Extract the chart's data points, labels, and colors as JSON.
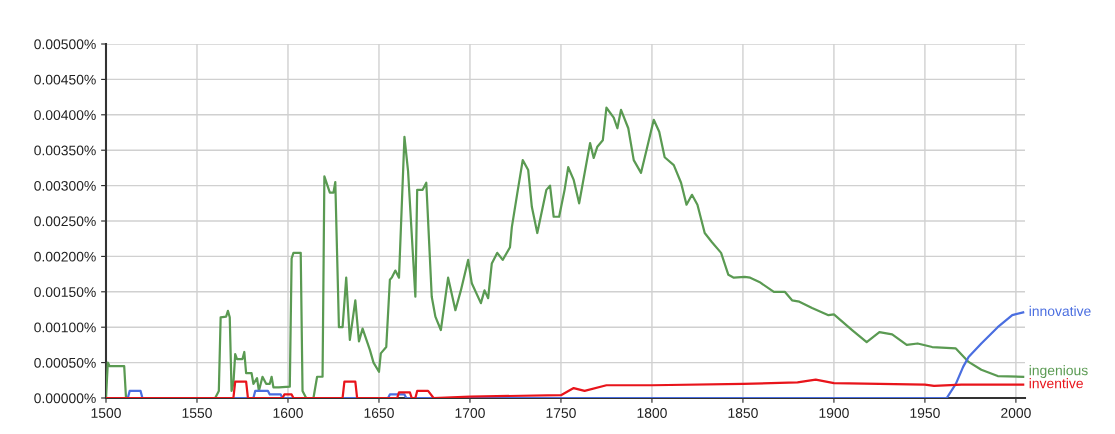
{
  "chart_data": {
    "type": "line",
    "xlim": [
      1500,
      2005
    ],
    "xticks": [
      1500,
      1550,
      1600,
      1650,
      1700,
      1750,
      1800,
      1850,
      1900,
      1950,
      2000
    ],
    "ylim": [
      0,
      0.005
    ],
    "yticks": [
      {
        "value": 0,
        "label": "0.00000%"
      },
      {
        "value": 0.0005,
        "label": "0.00050%"
      },
      {
        "value": 0.001,
        "label": "0.00100%"
      },
      {
        "value": 0.0015,
        "label": "0.00150%"
      },
      {
        "value": 0.002,
        "label": "0.00200%"
      },
      {
        "value": 0.0025,
        "label": "0.00250%"
      },
      {
        "value": 0.003,
        "label": "0.00300%"
      },
      {
        "value": 0.0035,
        "label": "0.00350%"
      },
      {
        "value": 0.004,
        "label": "0.00400%"
      },
      {
        "value": 0.0045,
        "label": "0.00450%"
      },
      {
        "value": 0.005,
        "label": "0.00500%"
      }
    ],
    "grid": true,
    "legend": false,
    "marker": "none",
    "line_style": "solid",
    "series": [
      {
        "name": "ingenious",
        "color": "#5a9a52",
        "x": [
          1500,
          1501,
          1502,
          1510,
          1511,
          1560,
          1562,
          1563,
          1566,
          1567,
          1568,
          1569,
          1570,
          1571,
          1572,
          1575,
          1576,
          1577,
          1580,
          1581,
          1583,
          1584,
          1586,
          1588,
          1590,
          1591,
          1592,
          1595,
          1601,
          1602,
          1603,
          1607,
          1608,
          1610,
          1614,
          1616,
          1619,
          1620,
          1623,
          1625,
          1626,
          1628,
          1630,
          1632,
          1634,
          1637,
          1639,
          1641,
          1645,
          1647,
          1650,
          1651,
          1654,
          1656,
          1657,
          1659,
          1661,
          1664,
          1666,
          1670,
          1671,
          1674,
          1676,
          1679,
          1681,
          1684,
          1688,
          1692,
          1695,
          1699,
          1701,
          1706,
          1708,
          1710,
          1712,
          1715,
          1718,
          1722,
          1723,
          1726,
          1729,
          1732,
          1734,
          1737,
          1742,
          1744,
          1746,
          1749,
          1752,
          1754,
          1757,
          1760,
          1766,
          1768,
          1770,
          1773,
          1775,
          1779,
          1781,
          1783,
          1787,
          1790,
          1794,
          1797,
          1801,
          1804,
          1807,
          1812,
          1816,
          1819,
          1822,
          1825,
          1829,
          1833,
          1838,
          1842,
          1845,
          1851,
          1854,
          1859,
          1867,
          1873,
          1877,
          1881,
          1888,
          1897,
          1900,
          1910,
          1918,
          1925,
          1932,
          1940,
          1946,
          1954,
          1967,
          1974,
          1981,
          1990,
          2004
        ],
        "values": [
          0,
          0.0005,
          0.00045,
          0.00045,
          0,
          0,
          0.0001,
          0.00114,
          0.00115,
          0.00123,
          0.00114,
          0.0001,
          0.0002,
          0.00062,
          0.00055,
          0.00055,
          0.00065,
          0.00035,
          0.00035,
          0.0002,
          0.00028,
          0.0001,
          0.0003,
          0.0002,
          0.0002,
          0.0003,
          0.00015,
          0.00015,
          0.00016,
          0.00197,
          0.00205,
          0.00205,
          0.0001,
          0,
          0,
          0.0003,
          0.0003,
          0.00313,
          0.0029,
          0.0029,
          0.00305,
          0.001,
          0.001,
          0.0017,
          0.00082,
          0.00138,
          0.0008,
          0.00098,
          0.00068,
          0.0005,
          0.00037,
          0.00063,
          0.00072,
          0.00167,
          0.0017,
          0.0018,
          0.0017,
          0.00369,
          0.0032,
          0.00143,
          0.00294,
          0.00294,
          0.00304,
          0.00143,
          0.00115,
          0.00096,
          0.0017,
          0.00124,
          0.00152,
          0.00195,
          0.00162,
          0.00134,
          0.00152,
          0.00141,
          0.0019,
          0.00205,
          0.00195,
          0.00213,
          0.00241,
          0.00289,
          0.00336,
          0.00322,
          0.0027,
          0.00233,
          0.00294,
          0.003,
          0.00256,
          0.00256,
          0.00294,
          0.00326,
          0.00308,
          0.00275,
          0.0036,
          0.00339,
          0.00355,
          0.00364,
          0.0041,
          0.00396,
          0.00381,
          0.00407,
          0.00381,
          0.00336,
          0.00318,
          0.0035,
          0.00393,
          0.00376,
          0.0034,
          0.00329,
          0.00304,
          0.00273,
          0.00287,
          0.00273,
          0.00233,
          0.0022,
          0.00205,
          0.00174,
          0.0017,
          0.00171,
          0.0017,
          0.00164,
          0.0015,
          0.0015,
          0.00138,
          0.00136,
          0.00127,
          0.00117,
          0.00118,
          0.00096,
          0.00079,
          0.00093,
          0.0009,
          0.00075,
          0.00077,
          0.00072,
          0.0007,
          0.00051,
          0.0004,
          0.00031,
          0.0003
        ]
      },
      {
        "name": "innovative",
        "color": "#4a6ee0",
        "x": [
          1500,
          1512,
          1513,
          1519,
          1520,
          1581,
          1582,
          1589,
          1590,
          1596,
          1597,
          1655,
          1656,
          1664,
          1665,
          1955,
          1962,
          1967,
          1971,
          1974,
          1981,
          1990,
          1998,
          2004
        ],
        "values": [
          0,
          0,
          0.0001,
          0.0001,
          0,
          0,
          0.0001,
          0.0001,
          5e-05,
          5e-05,
          0,
          0,
          5e-05,
          5e-05,
          0,
          0,
          0,
          0.0002,
          0.00044,
          0.00058,
          0.00077,
          0.001,
          0.00117,
          0.00121
        ]
      },
      {
        "name": "inventive",
        "color": "#e8141b",
        "x": [
          1500,
          1570,
          1571,
          1577,
          1578,
          1597,
          1598,
          1602,
          1603,
          1630,
          1631,
          1637,
          1638,
          1660,
          1661,
          1667,
          1668,
          1670,
          1671,
          1677,
          1680,
          1700,
          1750,
          1757,
          1763,
          1775,
          1800,
          1850,
          1880,
          1890,
          1900,
          1950,
          1955,
          1970,
          2004
        ],
        "values": [
          0,
          0,
          0.00023,
          0.00023,
          0,
          0,
          5e-05,
          5e-05,
          0,
          0,
          0.00023,
          0.00023,
          0,
          0,
          8e-05,
          8e-05,
          0,
          0,
          0.0001,
          0.0001,
          0,
          2e-05,
          4e-05,
          0.00014,
          0.0001,
          0.00018,
          0.00018,
          0.0002,
          0.00022,
          0.00026,
          0.00021,
          0.00019,
          0.00017,
          0.00019,
          0.00019
        ]
      }
    ]
  }
}
